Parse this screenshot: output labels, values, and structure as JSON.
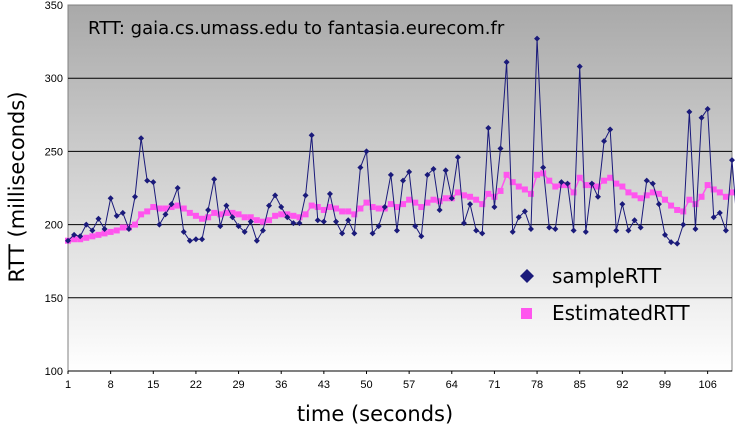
{
  "chart_data": {
    "type": "line",
    "title": "RTT: gaia.cs.umass.edu to fantasia.eurecom.fr",
    "xlabel": "time (seconds)",
    "ylabel": "RTT (milliseconds)",
    "ylim": [
      100,
      350
    ],
    "y_ticks": [
      100,
      150,
      200,
      250,
      300,
      350
    ],
    "x_ticks": [
      1,
      8,
      15,
      22,
      29,
      36,
      43,
      50,
      57,
      64,
      71,
      78,
      85,
      92,
      99,
      106
    ],
    "xlim": [
      1,
      110
    ],
    "grid": "horizontal",
    "legend_position": "bottom-right",
    "series": [
      {
        "name": "sampleRTT",
        "color": "#1a1a7a",
        "marker": "diamond",
        "values": [
          189,
          193,
          192,
          200,
          196,
          204,
          197,
          218,
          206,
          208,
          197,
          219,
          259,
          230,
          229,
          200,
          207,
          214,
          225,
          195,
          189,
          190,
          190,
          210,
          231,
          199,
          213,
          205,
          199,
          195,
          202,
          189,
          196,
          213,
          220,
          212,
          205,
          201,
          201,
          220,
          261,
          203,
          202,
          221,
          202,
          194,
          203,
          194,
          239,
          250,
          194,
          199,
          212,
          234,
          196,
          230,
          236,
          199,
          192,
          234,
          238,
          210,
          237,
          218,
          246,
          201,
          214,
          196,
          194,
          266,
          212,
          252,
          311,
          195,
          205,
          209,
          197,
          327,
          239,
          198,
          197,
          229,
          228,
          196,
          308,
          195,
          228,
          219,
          257,
          265,
          196,
          214,
          196,
          203,
          198,
          230,
          228,
          214,
          193,
          188,
          187,
          200,
          277,
          197,
          273,
          279,
          205,
          208,
          196,
          244,
          192
        ]
      },
      {
        "name": "EstimatedRTT",
        "color": "#ff55ee",
        "marker": "square",
        "values": [
          189,
          190,
          190,
          191,
          192,
          193,
          194,
          195,
          196,
          198,
          198,
          200,
          207,
          209,
          212,
          211,
          211,
          212,
          213,
          211,
          208,
          206,
          204,
          205,
          208,
          207,
          208,
          208,
          207,
          205,
          205,
          203,
          202,
          203,
          206,
          207,
          207,
          206,
          205,
          207,
          213,
          212,
          210,
          212,
          211,
          209,
          209,
          207,
          211,
          215,
          212,
          211,
          211,
          214,
          212,
          214,
          217,
          215,
          212,
          215,
          217,
          216,
          218,
          218,
          222,
          220,
          219,
          217,
          214,
          221,
          219,
          223,
          234,
          229,
          226,
          224,
          221,
          234,
          235,
          230,
          226,
          227,
          227,
          222,
          232,
          227,
          227,
          226,
          230,
          232,
          228,
          226,
          222,
          220,
          218,
          220,
          222,
          221,
          217,
          213,
          210,
          209,
          217,
          214,
          219,
          227,
          224,
          222,
          219,
          222,
          219
        ]
      }
    ]
  }
}
